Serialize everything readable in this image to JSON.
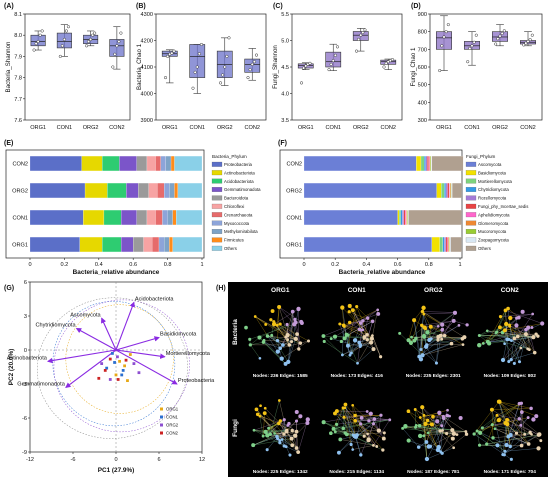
{
  "colors": {
    "ORG1": "#5b5bd6",
    "CON1": "#2b5fb0",
    "ORG2": "#7a4fc8",
    "CON2": "#6a4fb0",
    "box_fill": "#8a6fc4",
    "box_fill_alt": "#6b72c9",
    "bac_phyla": [
      "#5b6fc8",
      "#e6d800",
      "#2ecc71",
      "#7b55c9",
      "#9a9a9a",
      "#f7a3a3",
      "#e66b6b",
      "#8da4d9",
      "#7ea3c7",
      "#ff8c1a",
      "#8ad0e8",
      "#d8c7b0"
    ],
    "fungi_phyla": [
      "#6b7fd6",
      "#f2e100",
      "#7dd37d",
      "#3399e6",
      "#a47bd6",
      "#e84444",
      "#ff66cc",
      "#ee8833",
      "#99cc33",
      "#d9e8f4",
      "#b0a090"
    ],
    "net_bg": "#000000"
  },
  "chart_data": [
    {
      "panel": "(A)",
      "type": "box",
      "ylabel": "Bacteria_Shannon",
      "ylim": [
        7.6,
        8.1
      ],
      "yticks": [
        "7.6",
        "7.7",
        "7.8",
        "7.9",
        "8.0",
        "8.1"
      ],
      "categories": [
        "ORG1",
        "CON1",
        "ORG2",
        "CON2"
      ],
      "boxes": [
        {
          "min": 7.93,
          "q1": 7.95,
          "med": 7.97,
          "q3": 8.0,
          "max": 8.02,
          "points": [
            7.93,
            7.96,
            7.97,
            8.0,
            8.02
          ]
        },
        {
          "min": 7.9,
          "q1": 7.94,
          "med": 7.97,
          "q3": 8.01,
          "max": 8.05,
          "points": [
            7.9,
            7.95,
            7.98,
            8.02,
            8.04
          ]
        },
        {
          "min": 7.95,
          "q1": 7.96,
          "med": 7.98,
          "q3": 8.0,
          "max": 8.02,
          "points": [
            7.95,
            7.97,
            7.98,
            8.0,
            8.01
          ]
        },
        {
          "min": 7.84,
          "q1": 7.9,
          "med": 7.95,
          "q3": 7.98,
          "max": 8.04,
          "points": [
            7.85,
            7.91,
            7.95,
            7.97,
            8.01
          ]
        }
      ]
    },
    {
      "panel": "(B)",
      "type": "box",
      "ylabel": "Bacteria_Chao 1",
      "ylim": [
        3900,
        4300
      ],
      "yticks": [
        "3900",
        "4000",
        "4100",
        "4200",
        "4300"
      ],
      "categories": [
        "ORG1",
        "CON1",
        "ORG2",
        "CON2"
      ],
      "boxes": [
        {
          "min": 4040,
          "q1": 4140,
          "med": 4150,
          "q3": 4160,
          "max": 4165,
          "points": [
            4060,
            4140,
            4148,
            4152,
            4160
          ]
        },
        {
          "min": 4000,
          "q1": 4060,
          "med": 4140,
          "q3": 4185,
          "max": 4185,
          "points": [
            4020,
            4080,
            4100,
            4150,
            4185
          ]
        },
        {
          "min": 4030,
          "q1": 4060,
          "med": 4110,
          "q3": 4160,
          "max": 4210,
          "points": [
            4040,
            4070,
            4100,
            4140,
            4210
          ]
        },
        {
          "min": 4050,
          "q1": 4080,
          "med": 4110,
          "q3": 4130,
          "max": 4170,
          "points": [
            4060,
            4090,
            4110,
            4120,
            4145
          ]
        }
      ]
    },
    {
      "panel": "(C)",
      "type": "box",
      "ylabel": "Fungi_Shannon",
      "ylim": [
        3.5,
        5.5
      ],
      "yticks": [
        "3.5",
        "4.0",
        "4.5",
        "5.0",
        "5.5"
      ],
      "categories": [
        "ORG1",
        "CON1",
        "ORG2",
        "CON2"
      ],
      "boxes": [
        {
          "min": 4.45,
          "q1": 4.48,
          "med": 4.53,
          "q3": 4.56,
          "max": 4.58,
          "points": [
            4.2,
            4.48,
            4.52,
            4.55,
            4.57
          ]
        },
        {
          "min": 4.43,
          "q1": 4.5,
          "med": 4.6,
          "q3": 4.78,
          "max": 4.93,
          "points": [
            4.45,
            4.55,
            4.62,
            4.72,
            4.88
          ]
        },
        {
          "min": 4.8,
          "q1": 5.0,
          "med": 5.1,
          "q3": 5.17,
          "max": 5.23,
          "points": [
            4.8,
            5.02,
            5.1,
            5.15,
            5.2
          ]
        },
        {
          "min": 4.45,
          "q1": 4.55,
          "med": 4.6,
          "q3": 4.63,
          "max": 4.65,
          "points": [
            4.5,
            4.57,
            4.6,
            4.62,
            4.64
          ]
        }
      ]
    },
    {
      "panel": "(D)",
      "type": "box",
      "ylabel": "Fungi_Chao 1",
      "ylim": [
        300,
        900
      ],
      "yticks": [
        "300",
        "400",
        "500",
        "600",
        "700",
        "800",
        "900"
      ],
      "categories": [
        "ORG1",
        "CON1",
        "ORG2",
        "CON2"
      ],
      "boxes": [
        {
          "min": 580,
          "q1": 700,
          "med": 765,
          "q3": 800,
          "max": 890,
          "points": [
            580,
            720,
            770,
            800,
            840
          ]
        },
        {
          "min": 610,
          "q1": 700,
          "med": 720,
          "q3": 745,
          "max": 800,
          "points": [
            630,
            705,
            720,
            740,
            780
          ]
        },
        {
          "min": 720,
          "q1": 745,
          "med": 770,
          "q3": 800,
          "max": 840,
          "points": [
            730,
            760,
            775,
            790,
            805
          ]
        },
        {
          "min": 720,
          "q1": 730,
          "med": 740,
          "q3": 750,
          "max": 800,
          "points": [
            725,
            735,
            745,
            755,
            780
          ]
        }
      ]
    },
    {
      "panel": "(E)",
      "type": "bar",
      "orientation": "horizontal-stacked",
      "xlabel": "Bacteria_relative abundance",
      "legend_title": "Bacteria_Phylum",
      "xlim": [
        0,
        1
      ],
      "xticks": [
        "0",
        "0.2",
        "0.4",
        "0.6",
        "0.8",
        "1"
      ],
      "categories": [
        "CON2",
        "ORG2",
        "CON1",
        "ORG1"
      ],
      "series": [
        {
          "name": "Proteobacteria",
          "values": [
            0.3,
            0.32,
            0.31,
            0.29
          ]
        },
        {
          "name": "Actinobacteriota",
          "values": [
            0.12,
            0.13,
            0.12,
            0.13
          ]
        },
        {
          "name": "Acidobacteriota",
          "values": [
            0.1,
            0.11,
            0.1,
            0.11
          ]
        },
        {
          "name": "Gemmatimonadota",
          "values": [
            0.1,
            0.07,
            0.09,
            0.07
          ]
        },
        {
          "name": "Bacteroidota",
          "values": [
            0.06,
            0.06,
            0.06,
            0.06
          ]
        },
        {
          "name": "Chloroflexi",
          "values": [
            0.05,
            0.05,
            0.05,
            0.05
          ]
        },
        {
          "name": "Crenarchaeota",
          "values": [
            0.03,
            0.04,
            0.04,
            0.04
          ]
        },
        {
          "name": "Myxococcota",
          "values": [
            0.03,
            0.03,
            0.03,
            0.03
          ]
        },
        {
          "name": "Methylomirabilota",
          "values": [
            0.03,
            0.03,
            0.03,
            0.03
          ]
        },
        {
          "name": "Firmicutes",
          "values": [
            0.02,
            0.02,
            0.02,
            0.02
          ]
        },
        {
          "name": "Others",
          "values": [
            0.16,
            0.14,
            0.15,
            0.17
          ]
        }
      ]
    },
    {
      "panel": "(F)",
      "type": "bar",
      "orientation": "horizontal-stacked",
      "xlabel": "Bacteria_relative abundance",
      "legend_title": "Fungi_Phylum",
      "xlim": [
        0,
        1
      ],
      "xticks": [
        "0",
        "0.2",
        "0.4",
        "0.6",
        "0.8",
        "1"
      ],
      "categories": [
        "CON2",
        "ORG2",
        "CON1",
        "ORG1"
      ],
      "series": [
        {
          "name": "Ascomycota",
          "values": [
            0.72,
            0.85,
            0.6,
            0.82
          ]
        },
        {
          "name": "Basidiomycota",
          "values": [
            0.03,
            0.03,
            0.01,
            0.05
          ]
        },
        {
          "name": "Mortierellomycota",
          "values": [
            0.02,
            0.02,
            0.01,
            0.02
          ]
        },
        {
          "name": "Chytridiomycota",
          "values": [
            0.01,
            0.01,
            0.01,
            0.01
          ]
        },
        {
          "name": "Rozellomycota",
          "values": [
            0.01,
            0.01,
            0.01,
            0.01
          ]
        },
        {
          "name": "Fungi_phy_Incertae_sedis",
          "values": [
            0.01,
            0.01,
            0.01,
            0.01
          ]
        },
        {
          "name": "Aphelidiomycota",
          "values": [
            0.005,
            0.005,
            0.005,
            0.005
          ]
        },
        {
          "name": "Glomeromycota",
          "values": [
            0.005,
            0.005,
            0.005,
            0.005
          ]
        },
        {
          "name": "Mucoromycota",
          "values": [
            0.005,
            0.005,
            0.005,
            0.005
          ]
        },
        {
          "name": "Zoopagomycota",
          "values": [
            0.005,
            0.005,
            0.005,
            0.005
          ]
        },
        {
          "name": "Others",
          "values": [
            0.2,
            0.06,
            0.34,
            0.07
          ]
        }
      ]
    },
    {
      "panel": "(G)",
      "type": "scatter",
      "xlabel": "PC1 (27.9%)",
      "ylabel": "PC2 (20.0%)",
      "xlim": [
        -12,
        12
      ],
      "ylim": [
        -9,
        6
      ],
      "xticks": [
        "-12",
        "-6",
        "0",
        "6",
        "12"
      ],
      "yticks": [
        "-9",
        "-6",
        "-3",
        "0",
        "3",
        "6"
      ],
      "arrows": [
        {
          "name": "Acidobacteriota",
          "x": 2.5,
          "y": 4.2,
          "color": "#22bb77"
        },
        {
          "name": "Ascomycota",
          "x": -2.0,
          "y": 2.8,
          "color": "#e6a817"
        },
        {
          "name": "Chytridiomycota",
          "x": -5.5,
          "y": 1.9,
          "color": "#e6a817"
        },
        {
          "name": "Basidiomycota",
          "x": 6.0,
          "y": 1.1,
          "color": "#e6a817"
        },
        {
          "name": "Mortierellomycota",
          "x": 6.8,
          "y": -0.6,
          "color": "#e6a817"
        },
        {
          "name": "Actinobacteriota",
          "x": -9.5,
          "y": -1.0,
          "color": "#22bb77"
        },
        {
          "name": "Proteobacteria",
          "x": 8.5,
          "y": -3.0,
          "color": "#22bb77"
        },
        {
          "name": "Gemmatimonadota",
          "x": -7.0,
          "y": -3.3,
          "color": "#22bb77"
        }
      ],
      "groups": [
        {
          "name": "ORG1",
          "color": "#e6a817",
          "points": [
            [
              0.5,
              -1.0
            ],
            [
              1.2,
              -1.4
            ],
            [
              2.0,
              -0.4
            ],
            [
              0.0,
              -2.2
            ],
            [
              1.6,
              -2.7
            ]
          ]
        },
        {
          "name": "CON1",
          "color": "#2b6fd0",
          "points": [
            [
              -0.5,
              -0.3
            ],
            [
              -1.3,
              -1.6
            ],
            [
              1.0,
              -1.8
            ],
            [
              -0.2,
              -1.1
            ],
            [
              0.8,
              -2.2
            ]
          ]
        },
        {
          "name": "ORG2",
          "color": "#8d4fd0",
          "points": [
            [
              -2.0,
              -1.2
            ],
            [
              -0.8,
              -2.6
            ],
            [
              2.5,
              -1.2
            ],
            [
              0.2,
              -0.6
            ],
            [
              3.2,
              -2.0
            ]
          ]
        },
        {
          "name": "CON2",
          "color": "#cc2222",
          "points": [
            [
              -1.5,
              -1.8
            ],
            [
              -0.8,
              -0.8
            ],
            [
              0.3,
              -2.6
            ],
            [
              1.4,
              -0.9
            ],
            [
              -2.4,
              -2.5
            ]
          ]
        }
      ]
    }
  ],
  "panel_labels": {
    "A": "(A)",
    "B": "(B)",
    "C": "(C)",
    "D": "(D)",
    "E": "(E)",
    "F": "(F)",
    "G": "(G)",
    "H": "(H)"
  },
  "network": {
    "columns": [
      "ORG1",
      "CON1",
      "ORG2",
      "CON2"
    ],
    "rows": [
      "Bacteria",
      "Fungi"
    ],
    "stats": [
      [
        "Nodes: 236 Edges: 1585",
        "Nodes: 173 Edges: 416",
        "Nodes: 235 Edges: 2301",
        "Nodes: 109 Edges: 802"
      ],
      [
        "Nodes: 225 Edges: 1342",
        "Nodes: 215 Edges: 1134",
        "Nodes: 187 Edges: 781",
        "Nodes: 171 Edges: 704"
      ]
    ]
  }
}
